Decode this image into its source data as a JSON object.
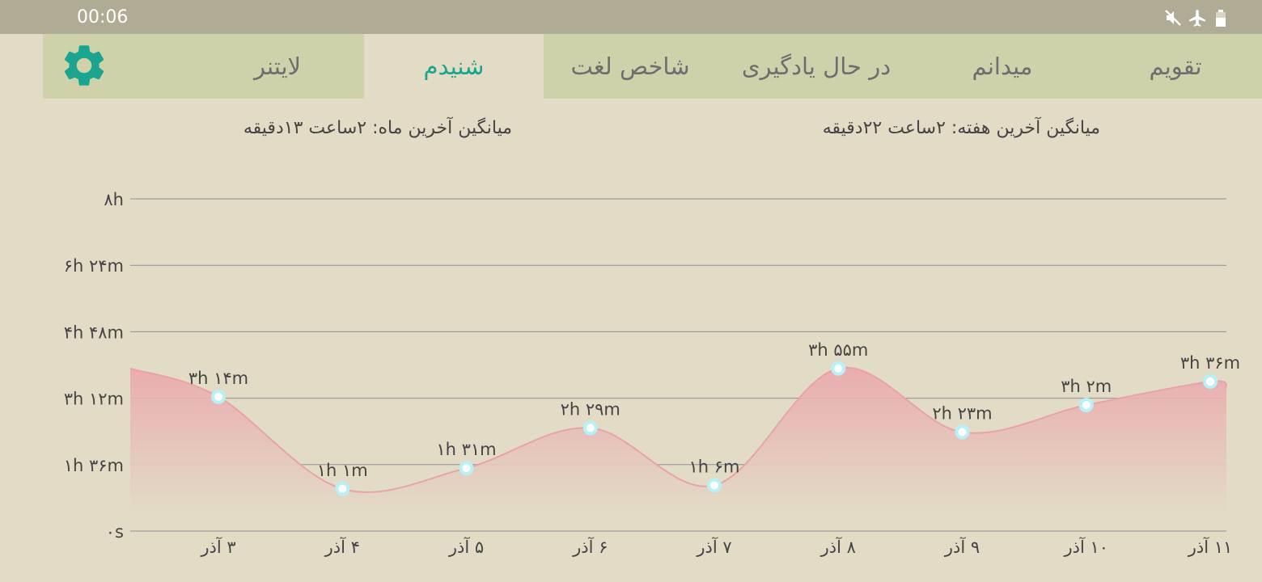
{
  "status_bar": {
    "time": "00:06",
    "icons": [
      "mute-icon",
      "airplane-mode-icon",
      "battery-icon"
    ]
  },
  "tabs": [
    {
      "label": "تقویم",
      "active": false
    },
    {
      "label": "میدانم",
      "active": false
    },
    {
      "label": "در حال یادگیری",
      "active": false
    },
    {
      "label": "شاخص لغت",
      "active": false
    },
    {
      "label": "شنیدم",
      "active": true
    },
    {
      "label": "لایتنر",
      "active": false
    }
  ],
  "settings_icon": "gear-icon",
  "colors": {
    "accent": "#1aa58e",
    "tabbar_bg": "#cfd1ab",
    "page_bg": "#e2dcc6",
    "area_fill": "#eba7ad",
    "line": "#e7a3aa",
    "point": "#b8f0f8"
  },
  "averages": {
    "week": "میانگین آخرین هفته: ۲ساعت  ۲۲دقیقه",
    "month": "میانگین آخرین ماه: ۲ساعت  ۱۳دقیقه"
  },
  "chart_data": {
    "type": "area",
    "y_ticks": [
      "۰s",
      "۱h ۳۶m",
      "۳h ۱۲m",
      "۴h ۴۸m",
      "۶h ۲۴m",
      "۸h"
    ],
    "ylim": [
      0,
      480
    ],
    "x": [
      "۳ آذر",
      "۴ آذر",
      "۵ آذر",
      "۶ آذر",
      "۷ آذر",
      "۸ آذر",
      "۹ آذر",
      "۱۰ آذر",
      "۱۱ آذر"
    ],
    "values": [
      194,
      61,
      91,
      149,
      66,
      235,
      143,
      182,
      216
    ],
    "data_labels": [
      "۳h ۱۴m",
      "۱h ۱m",
      "۱h ۳۱m",
      "۲h ۲۹m",
      "۱h ۶m",
      "۳h ۵۵m",
      "۲h ۲۳m",
      "۳h ۲m",
      "۳h ۳۶m"
    ],
    "grid": true,
    "legend": "none"
  }
}
